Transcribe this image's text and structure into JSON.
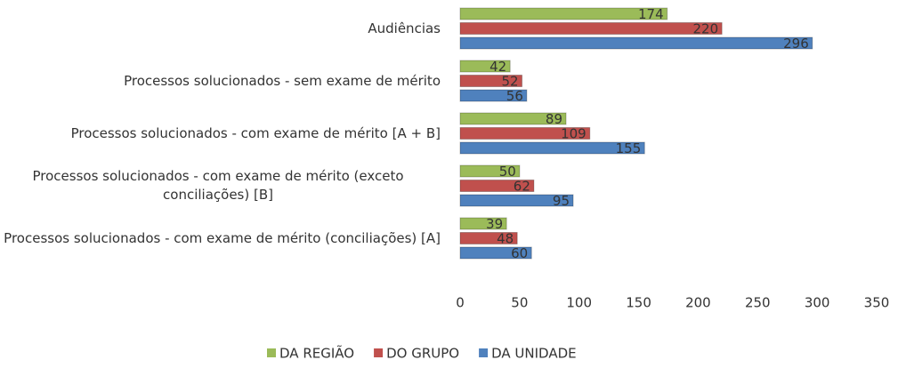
{
  "chart_data": {
    "type": "bar",
    "orientation": "horizontal",
    "categories": [
      "Audiências",
      "Processos solucionados - sem exame de mérito",
      "Processos solucionados - com exame de mérito [A + B]",
      "Processos solucionados - com exame de mérito (exceto conciliações) [B]",
      "Processos solucionados - com exame de mérito (conciliações) [A]"
    ],
    "series": [
      {
        "name": "DA REGIÃO",
        "color": "#9bbb59",
        "values": [
          174,
          42,
          89,
          50,
          39
        ]
      },
      {
        "name": "DO GRUPO",
        "color": "#c0504d",
        "values": [
          220,
          52,
          109,
          62,
          48
        ]
      },
      {
        "name": "DA UNIDADE",
        "color": "#4f81bd",
        "values": [
          296,
          56,
          155,
          95,
          60
        ]
      }
    ],
    "xlim": [
      0,
      350
    ],
    "xticks": [
      0,
      50,
      100,
      150,
      200,
      250,
      300,
      350
    ],
    "grid": false,
    "legend": "bottom"
  }
}
